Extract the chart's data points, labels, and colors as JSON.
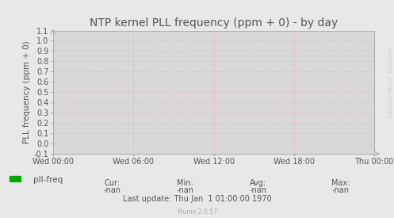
{
  "title": "NTP kernel PLL frequency (ppm + 0) - by day",
  "ylabel": "PLL frequency (ppm + 0)",
  "background_color": "#e8e8e8",
  "plot_bg_color": "#d8d8d8",
  "grid_color": "#ff9999",
  "ylim": [
    -0.1,
    1.1
  ],
  "yticks": [
    -0.1,
    0.0,
    0.1,
    0.2,
    0.3,
    0.4,
    0.5,
    0.6,
    0.7,
    0.8,
    0.9,
    1.0,
    1.1
  ],
  "xtick_labels": [
    "Wed 00:00",
    "Wed 06:00",
    "Wed 12:00",
    "Wed 18:00",
    "Thu 00:00"
  ],
  "legend_label": "pll-freq",
  "legend_color": "#00aa00",
  "cur_val": "-nan",
  "min_val": "-nan",
  "avg_val": "-nan",
  "max_val": "-nan",
  "last_update": "Last update: Thu Jan  1 01:00:00 1970",
  "munin_version": "Munin 2.0.57",
  "watermark": "RRDTOOL / TOBI OETIKER",
  "title_fontsize": 10,
  "axis_label_fontsize": 7.5,
  "tick_fontsize": 7,
  "legend_fontsize": 7.5,
  "footer_fontsize": 7,
  "watermark_fontsize": 5,
  "axis_color": "#aaaaaa",
  "text_color": "#555555",
  "arrow_color": "#aaaacc"
}
